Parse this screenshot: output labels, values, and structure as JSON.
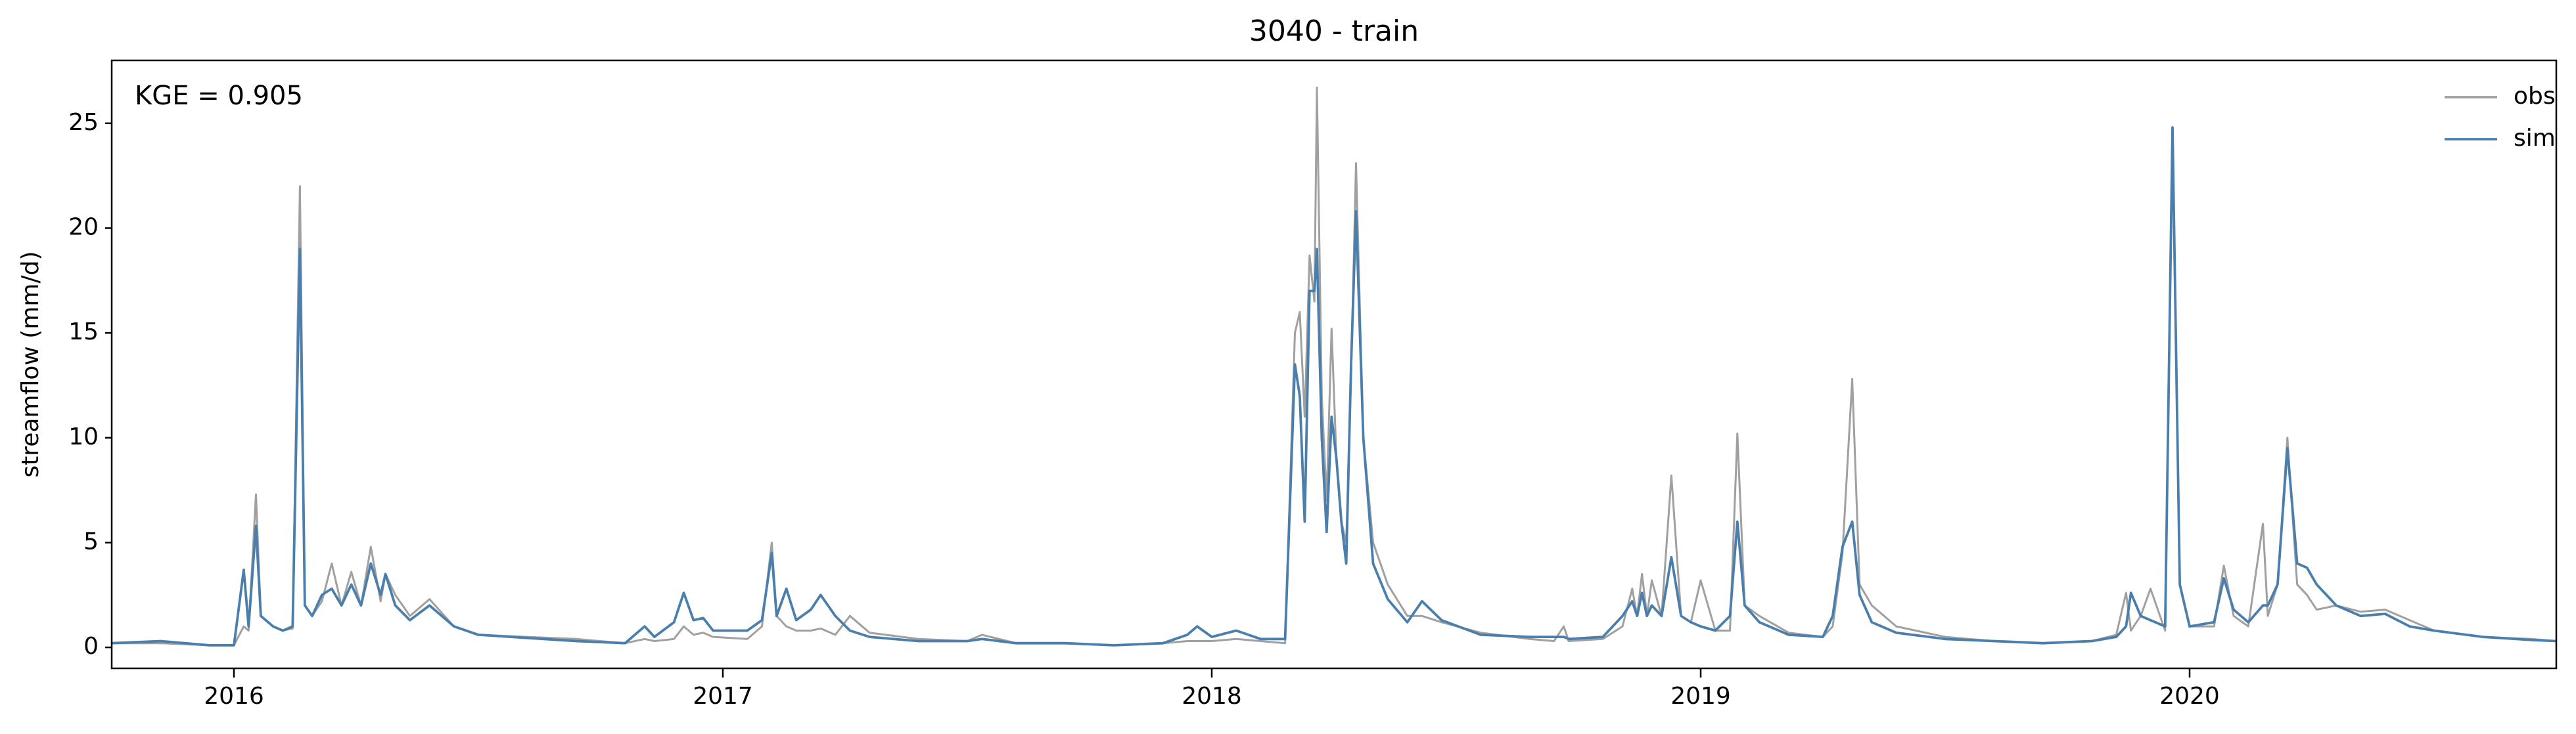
{
  "chart_data": {
    "type": "line",
    "title": "3040 - train",
    "ylabel": "streamflow (mm/d)",
    "annotation": "KGE = 0.905",
    "legend": "upper right",
    "grid": false,
    "xlim": [
      2015.75,
      2020.75
    ],
    "xticks": [
      2016,
      2017,
      2018,
      2019,
      2020
    ],
    "ylim": [
      -1,
      28
    ],
    "yticks": [
      0,
      5,
      10,
      15,
      20,
      25
    ],
    "x": [
      2015.75,
      2015.85,
      2015.95,
      2016.0,
      2016.02,
      2016.03,
      2016.045,
      2016.055,
      2016.08,
      2016.1,
      2016.12,
      2016.135,
      2016.145,
      2016.16,
      2016.18,
      2016.2,
      2016.22,
      2016.24,
      2016.26,
      2016.28,
      2016.3,
      2016.31,
      2016.33,
      2016.36,
      2016.4,
      2016.45,
      2016.5,
      2016.6,
      2016.7,
      2016.8,
      2016.84,
      2016.86,
      2016.9,
      2016.92,
      2016.94,
      2016.96,
      2016.98,
      2017.05,
      2017.08,
      2017.1,
      2017.11,
      2017.13,
      2017.15,
      2017.18,
      2017.2,
      2017.23,
      2017.26,
      2017.3,
      2017.4,
      2017.5,
      2017.53,
      2017.6,
      2017.7,
      2017.8,
      2017.9,
      2017.95,
      2017.97,
      2018.0,
      2018.05,
      2018.1,
      2018.15,
      2018.17,
      2018.18,
      2018.19,
      2018.2,
      2018.21,
      2018.215,
      2018.225,
      2018.235,
      2018.245,
      2018.255,
      2018.265,
      2018.275,
      2018.285,
      2018.295,
      2018.31,
      2018.33,
      2018.36,
      2018.4,
      2018.43,
      2018.47,
      2018.55,
      2018.65,
      2018.7,
      2018.72,
      2018.73,
      2018.8,
      2018.84,
      2018.86,
      2018.87,
      2018.88,
      2018.89,
      2018.9,
      2018.92,
      2018.94,
      2018.96,
      2018.98,
      2019.0,
      2019.03,
      2019.06,
      2019.075,
      2019.09,
      2019.12,
      2019.18,
      2019.25,
      2019.27,
      2019.29,
      2019.31,
      2019.325,
      2019.35,
      2019.4,
      2019.5,
      2019.6,
      2019.7,
      2019.8,
      2019.85,
      2019.87,
      2019.88,
      2019.9,
      2019.92,
      2019.95,
      2019.965,
      2019.98,
      2020.0,
      2020.05,
      2020.07,
      2020.09,
      2020.12,
      2020.15,
      2020.16,
      2020.18,
      2020.2,
      2020.22,
      2020.24,
      2020.26,
      2020.3,
      2020.35,
      2020.4,
      2020.45,
      2020.5,
      2020.6,
      2020.7,
      2020.75
    ],
    "series": [
      {
        "name": "obs",
        "color": "#a0a0a0",
        "values": [
          0.2,
          0.2,
          0.1,
          0.1,
          1.0,
          0.8,
          7.3,
          1.5,
          1.0,
          0.8,
          0.9,
          22.0,
          2.0,
          1.5,
          2.2,
          4.0,
          2.0,
          3.6,
          2.0,
          4.8,
          2.2,
          3.5,
          2.5,
          1.5,
          2.3,
          1.0,
          0.6,
          0.5,
          0.4,
          0.2,
          0.4,
          0.3,
          0.4,
          1.0,
          0.6,
          0.7,
          0.5,
          0.4,
          1.0,
          5.0,
          1.5,
          1.0,
          0.8,
          0.8,
          0.9,
          0.6,
          1.5,
          0.7,
          0.4,
          0.3,
          0.6,
          0.2,
          0.2,
          0.1,
          0.2,
          0.3,
          0.3,
          0.3,
          0.4,
          0.3,
          0.2,
          15.0,
          16.0,
          11.0,
          18.7,
          16.5,
          26.7,
          12.0,
          7.0,
          15.2,
          9.0,
          6.0,
          5.0,
          13.0,
          23.1,
          10.0,
          5.0,
          3.0,
          1.5,
          1.5,
          1.2,
          0.7,
          0.4,
          0.3,
          1.0,
          0.3,
          0.4,
          1.0,
          2.8,
          1.5,
          3.5,
          1.5,
          3.2,
          1.5,
          8.2,
          1.5,
          1.2,
          3.2,
          0.8,
          0.8,
          10.2,
          2.0,
          1.5,
          0.7,
          0.5,
          1.0,
          4.5,
          12.8,
          3.0,
          2.0,
          1.0,
          0.5,
          0.3,
          0.2,
          0.3,
          0.6,
          2.6,
          0.8,
          1.5,
          2.8,
          0.8,
          24.8,
          3.0,
          1.0,
          1.0,
          3.9,
          1.5,
          1.0,
          5.9,
          1.5,
          3.0,
          10.0,
          3.0,
          2.5,
          1.8,
          2.0,
          1.7,
          1.8,
          1.3,
          0.8,
          0.5,
          0.4,
          0.3
        ]
      },
      {
        "name": "sim",
        "color": "#4a7fad",
        "values": [
          0.2,
          0.3,
          0.1,
          0.1,
          3.7,
          1.0,
          5.8,
          1.5,
          1.0,
          0.8,
          1.0,
          19.0,
          2.0,
          1.5,
          2.5,
          2.8,
          2.0,
          3.0,
          2.0,
          4.0,
          2.5,
          3.5,
          2.0,
          1.3,
          2.0,
          1.0,
          0.6,
          0.45,
          0.3,
          0.2,
          1.0,
          0.5,
          1.2,
          2.6,
          1.3,
          1.4,
          0.8,
          0.8,
          1.3,
          4.5,
          1.5,
          2.8,
          1.3,
          1.8,
          2.5,
          1.5,
          0.8,
          0.5,
          0.3,
          0.3,
          0.4,
          0.2,
          0.2,
          0.1,
          0.2,
          0.6,
          1.0,
          0.5,
          0.8,
          0.4,
          0.4,
          13.5,
          12.0,
          6.0,
          17.0,
          17.0,
          19.0,
          10.0,
          5.5,
          11.0,
          9.0,
          6.0,
          4.0,
          13.5,
          20.8,
          10.0,
          4.0,
          2.3,
          1.2,
          2.2,
          1.3,
          0.6,
          0.5,
          0.5,
          0.5,
          0.4,
          0.5,
          1.5,
          2.2,
          1.5,
          2.6,
          1.5,
          2.0,
          1.5,
          4.3,
          1.5,
          1.2,
          1.0,
          0.8,
          1.5,
          6.0,
          2.0,
          1.2,
          0.6,
          0.5,
          1.5,
          4.8,
          6.0,
          2.5,
          1.2,
          0.7,
          0.4,
          0.3,
          0.2,
          0.3,
          0.5,
          1.0,
          2.6,
          1.5,
          1.3,
          1.0,
          24.8,
          3.0,
          1.0,
          1.2,
          3.3,
          1.8,
          1.2,
          2.0,
          2.0,
          3.0,
          9.5,
          4.0,
          3.8,
          3.0,
          2.0,
          1.5,
          1.6,
          1.0,
          0.8,
          0.5,
          0.35,
          0.3
        ]
      }
    ]
  }
}
